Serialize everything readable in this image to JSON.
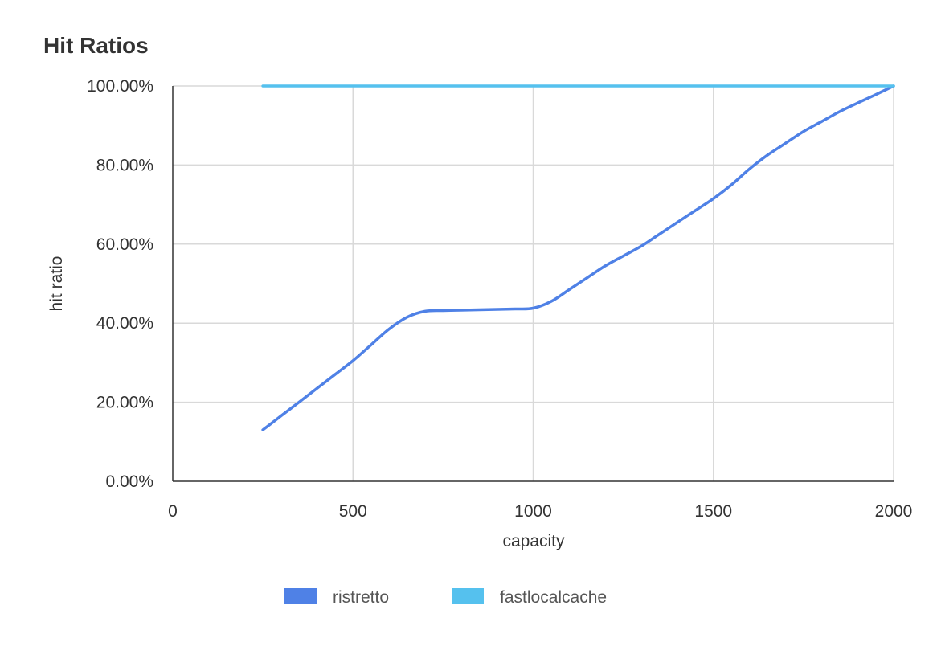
{
  "chart_data": {
    "type": "line",
    "title": "Hit Ratios",
    "xlabel": "capacity",
    "ylabel": "hit ratio",
    "xlim": [
      0,
      2000
    ],
    "ylim": [
      0,
      100
    ],
    "x_ticks": [
      "0",
      "500",
      "1000",
      "1500",
      "2000"
    ],
    "y_ticks": [
      "0.00%",
      "20.00%",
      "40.00%",
      "60.00%",
      "80.00%",
      "100.00%"
    ],
    "grid": true,
    "legend_position": "bottom",
    "series": [
      {
        "name": "ristretto",
        "color": "#4f81e6",
        "x": [
          250,
          300,
          350,
          400,
          450,
          500,
          550,
          600,
          650,
          700,
          750,
          800,
          850,
          900,
          950,
          1000,
          1050,
          1100,
          1150,
          1200,
          1250,
          1300,
          1350,
          1400,
          1450,
          1500,
          1550,
          1600,
          1650,
          1700,
          1750,
          1800,
          1850,
          1900,
          1950,
          2000
        ],
        "values": [
          13,
          16.5,
          20,
          23.5,
          27,
          30.5,
          34.5,
          38.5,
          41.5,
          43,
          43.2,
          43.3,
          43.4,
          43.5,
          43.6,
          43.8,
          45.5,
          48.5,
          51.5,
          54.5,
          57,
          59.5,
          62.5,
          65.5,
          68.5,
          71.5,
          75,
          79,
          82.5,
          85.5,
          88.5,
          91,
          93.5,
          95.7,
          97.8,
          100
        ]
      },
      {
        "name": "fastlocalcache",
        "color": "#55c1ee",
        "x": [
          250,
          500,
          750,
          1000,
          1250,
          1500,
          1750,
          2000
        ],
        "values": [
          100,
          100,
          100,
          100,
          100,
          100,
          100,
          100
        ]
      }
    ]
  }
}
